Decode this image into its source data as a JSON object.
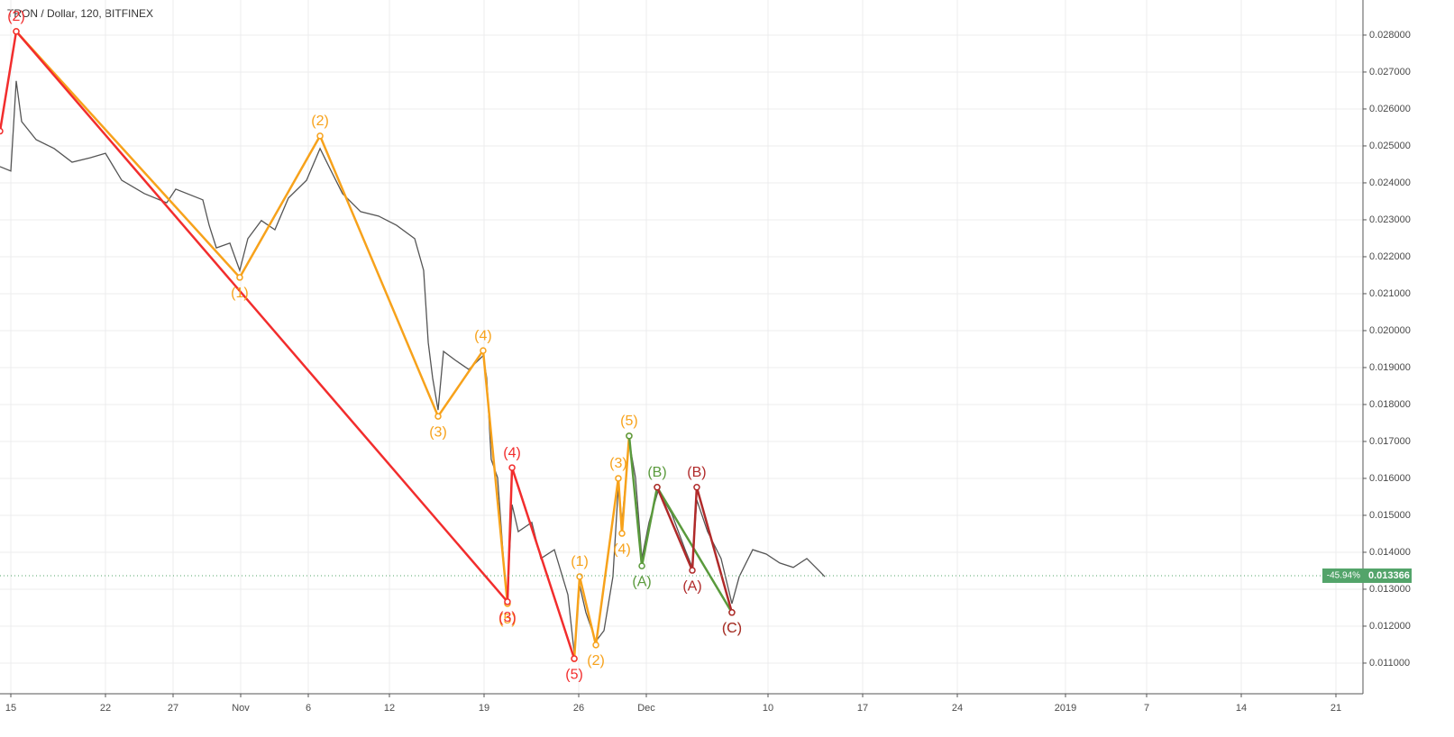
{
  "chart_data": {
    "type": "line",
    "title": "TRON / Dollar, 120, BITFINEX",
    "color": "#555555",
    "grid": true,
    "xlim": [
      -0.8,
      100
    ],
    "ylim": [
      0.01017,
      0.02895
    ],
    "xticks": [
      {
        "value": 0,
        "label": "15"
      },
      {
        "value": 7,
        "label": "22"
      },
      {
        "value": 12,
        "label": "27"
      },
      {
        "value": 17,
        "label": "Nov"
      },
      {
        "value": 22,
        "label": "6"
      },
      {
        "value": 28,
        "label": "12"
      },
      {
        "value": 35,
        "label": "19"
      },
      {
        "value": 42,
        "label": "26"
      },
      {
        "value": 47,
        "label": "Dec"
      },
      {
        "value": 56,
        "label": "10"
      },
      {
        "value": 63,
        "label": "17"
      },
      {
        "value": 70,
        "label": "24"
      },
      {
        "value": 78,
        "label": "2019"
      },
      {
        "value": 84,
        "label": "7"
      },
      {
        "value": 91,
        "label": "14"
      },
      {
        "value": 98,
        "label": "21"
      }
    ],
    "yticks": [
      {
        "value": 0.011,
        "label": "0.011000"
      },
      {
        "value": 0.012,
        "label": "0.012000"
      },
      {
        "value": 0.013,
        "label": "0.013000"
      },
      {
        "value": 0.014,
        "label": "0.014000"
      },
      {
        "value": 0.015,
        "label": "0.015000"
      },
      {
        "value": 0.016,
        "label": "0.016000"
      },
      {
        "value": 0.017,
        "label": "0.017000"
      },
      {
        "value": 0.018,
        "label": "0.018000"
      },
      {
        "value": 0.019,
        "label": "0.019000"
      },
      {
        "value": 0.02,
        "label": "0.020000"
      },
      {
        "value": 0.021,
        "label": "0.021000"
      },
      {
        "value": 0.022,
        "label": "0.022000"
      },
      {
        "value": 0.023,
        "label": "0.023000"
      },
      {
        "value": 0.024,
        "label": "0.024000"
      },
      {
        "value": 0.025,
        "label": "0.025000"
      },
      {
        "value": 0.026,
        "label": "0.026000"
      },
      {
        "value": 0.027,
        "label": "0.027000"
      },
      {
        "value": 0.028,
        "label": "0.028000"
      }
    ],
    "x": [
      -0.8,
      0,
      0.4,
      0.8,
      1.87,
      3.2,
      4.53,
      5.87,
      7,
      8.2,
      9.87,
      11.53,
      12.2,
      14.2,
      14.67,
      15.2,
      16.2,
      16.93,
      17.53,
      18.53,
      19.53,
      20.53,
      21.87,
      22.87,
      23.53,
      24.53,
      25.87,
      27.2,
      28.53,
      29.87,
      30.53,
      30.87,
      31.2,
      31.6,
      32,
      32.87,
      33.87,
      34.93,
      35.2,
      35.53,
      36,
      36.53,
      36.73,
      37.07,
      37.53,
      38.53,
      39.2,
      40.2,
      41.2,
      41.67,
      42.07,
      42.53,
      43.27,
      43.87,
      44.53,
      44.93,
      45.2,
      45.73,
      46.2,
      46.67,
      47.2,
      47.87,
      48.87,
      49.87,
      50.4,
      50.73,
      51.53,
      52.53,
      53.33,
      53.87,
      54.87,
      55.87,
      56.87,
      57.87,
      58.87,
      59.53,
      60.2
    ],
    "values": [
      0.02444,
      0.02432,
      0.02676,
      0.02566,
      0.02517,
      0.02493,
      0.02456,
      0.02468,
      0.0248,
      0.02407,
      0.02371,
      0.02346,
      0.02383,
      0.02354,
      0.02285,
      0.02224,
      0.02237,
      0.02163,
      0.02249,
      0.02298,
      0.02273,
      0.02359,
      0.02407,
      0.02493,
      0.02444,
      0.02371,
      0.02322,
      0.0231,
      0.02285,
      0.02249,
      0.02163,
      0.01968,
      0.01871,
      0.01785,
      0.01944,
      0.0192,
      0.01895,
      0.01932,
      0.01871,
      0.01651,
      0.01602,
      0.01334,
      0.01285,
      0.01529,
      0.01456,
      0.01481,
      0.01383,
      0.01407,
      0.01285,
      0.01127,
      0.0131,
      0.01237,
      0.01159,
      0.01188,
      0.01334,
      0.01578,
      0.01481,
      0.017,
      0.01602,
      0.01383,
      0.01481,
      0.01566,
      0.01505,
      0.01407,
      0.01359,
      0.01542,
      0.01456,
      0.01383,
      0.01261,
      0.01334,
      0.01407,
      0.01395,
      0.01371,
      0.01359,
      0.01383,
      0.01359,
      0.01334
    ],
    "last_price": {
      "value": 0.013366,
      "label": "0.013366",
      "change": "-45.94%",
      "color": "#53a46a"
    },
    "waves": [
      {
        "color": "#f7a21b",
        "points": [
          {
            "x": 0.4,
            "y": 0.0281
          },
          {
            "x": 16.93,
            "y": 0.02144,
            "label": "(1)"
          },
          {
            "x": 22.87,
            "y": 0.02527,
            "label": "(2)"
          },
          {
            "x": 31.6,
            "y": 0.01768,
            "label": "(3)"
          },
          {
            "x": 34.93,
            "y": 0.01946,
            "label": "(4)"
          },
          {
            "x": 36.73,
            "y": 0.01261,
            "label": "(5)"
          }
        ]
      },
      {
        "color": "#f7a21b",
        "points": [
          {
            "x": 41.67,
            "y": 0.01112
          },
          {
            "x": 42.07,
            "y": 0.01334,
            "label": "(1)"
          },
          {
            "x": 43.27,
            "y": 0.01149,
            "label": "(2)"
          },
          {
            "x": 44.93,
            "y": 0.016,
            "label": "(3)"
          },
          {
            "x": 45.2,
            "y": 0.01451,
            "label": "(4)"
          },
          {
            "x": 45.73,
            "y": 0.01715,
            "label": "(5)"
          }
        ]
      },
      {
        "color": "#f22d2d",
        "points": [
          {
            "x": -0.8,
            "y": 0.0254
          },
          {
            "x": 0.4,
            "y": 0.0281,
            "label": "(2)"
          },
          {
            "x": 36.73,
            "y": 0.01266,
            "label": "(3)"
          },
          {
            "x": 37.07,
            "y": 0.01629,
            "label": "(4)"
          },
          {
            "x": 41.67,
            "y": 0.01112,
            "label": "(5)"
          }
        ]
      },
      {
        "color": "#5a9a3c",
        "points": [
          {
            "x": 45.73,
            "y": 0.01715
          },
          {
            "x": 46.67,
            "y": 0.01363,
            "label": "(A)"
          },
          {
            "x": 47.8,
            "y": 0.01576,
            "label": "(B)"
          },
          {
            "x": 53.33,
            "y": 0.01237,
            "label": "(C)"
          }
        ]
      },
      {
        "color": "#b02a2a",
        "points": [
          {
            "x": 47.8,
            "y": 0.01576
          },
          {
            "x": 50.4,
            "y": 0.01351,
            "label": "(A)"
          },
          {
            "x": 50.73,
            "y": 0.01576,
            "label": "(B)"
          },
          {
            "x": 53.33,
            "y": 0.01237,
            "label": "(C)"
          }
        ]
      }
    ]
  }
}
